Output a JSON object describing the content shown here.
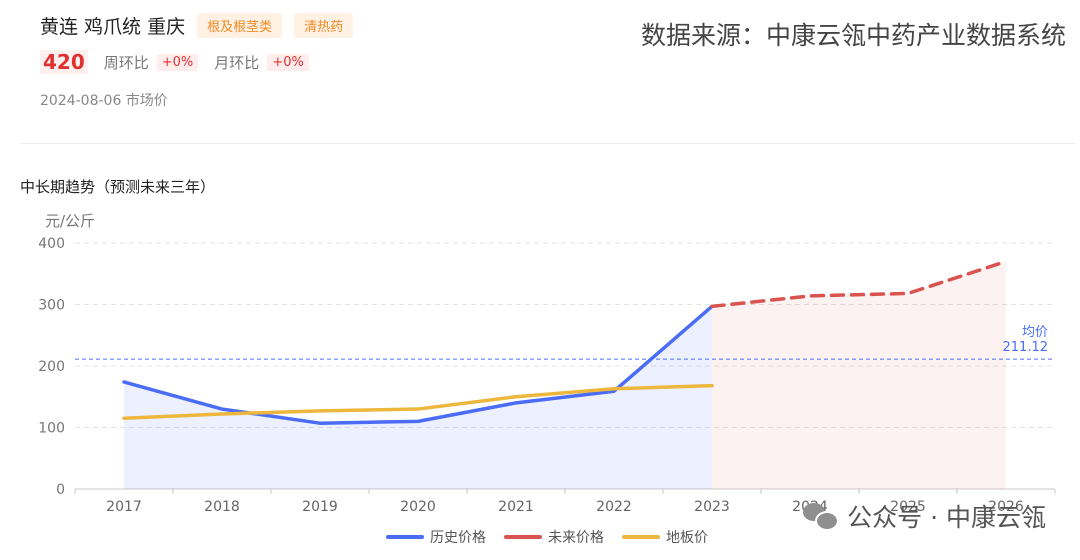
{
  "header": {
    "product": "黄连 鸡爪统 重庆",
    "tags": [
      "根及根茎类",
      "清热药"
    ],
    "price": "420",
    "week_label": "周环比",
    "week_change": "+0%",
    "month_label": "月环比",
    "month_change": "+0%",
    "date_text": "2024-08-06 市场价",
    "source": "数据来源：中康云瓴中药产业数据系统"
  },
  "section_title": "中长期趋势（预测未来三年）",
  "watermark": {
    "text": "公众号 · 中康云瓴",
    "icon": "wechat-icon"
  },
  "chart_data": {
    "type": "line",
    "ylabel": "元/公斤",
    "ylim": [
      0,
      400
    ],
    "yticks": [
      0,
      100,
      200,
      300,
      400
    ],
    "categories": [
      "2017",
      "2018",
      "2019",
      "2020",
      "2021",
      "2022",
      "2023",
      "2024",
      "2025",
      "2026"
    ],
    "series": [
      {
        "name": "历史价格",
        "color": "#4a6cf7",
        "style": "solid",
        "area": true,
        "values": [
          174,
          130,
          107,
          110,
          140,
          159,
          297,
          null,
          null,
          null
        ]
      },
      {
        "name": "未来价格",
        "color": "#d9534f",
        "style": "dashed",
        "area": true,
        "values": [
          null,
          null,
          null,
          null,
          null,
          null,
          297,
          314,
          318,
          370
        ]
      },
      {
        "name": "地板价",
        "color": "#ecb73c",
        "style": "solid",
        "area": false,
        "values": [
          115,
          122,
          127,
          130,
          150,
          163,
          168,
          null,
          null,
          null
        ]
      }
    ],
    "average": {
      "label": "均价",
      "value": 211.12,
      "value_text": "211.12",
      "color": "#4a6cf7"
    },
    "grid": true,
    "legend_position": "bottom-center"
  }
}
